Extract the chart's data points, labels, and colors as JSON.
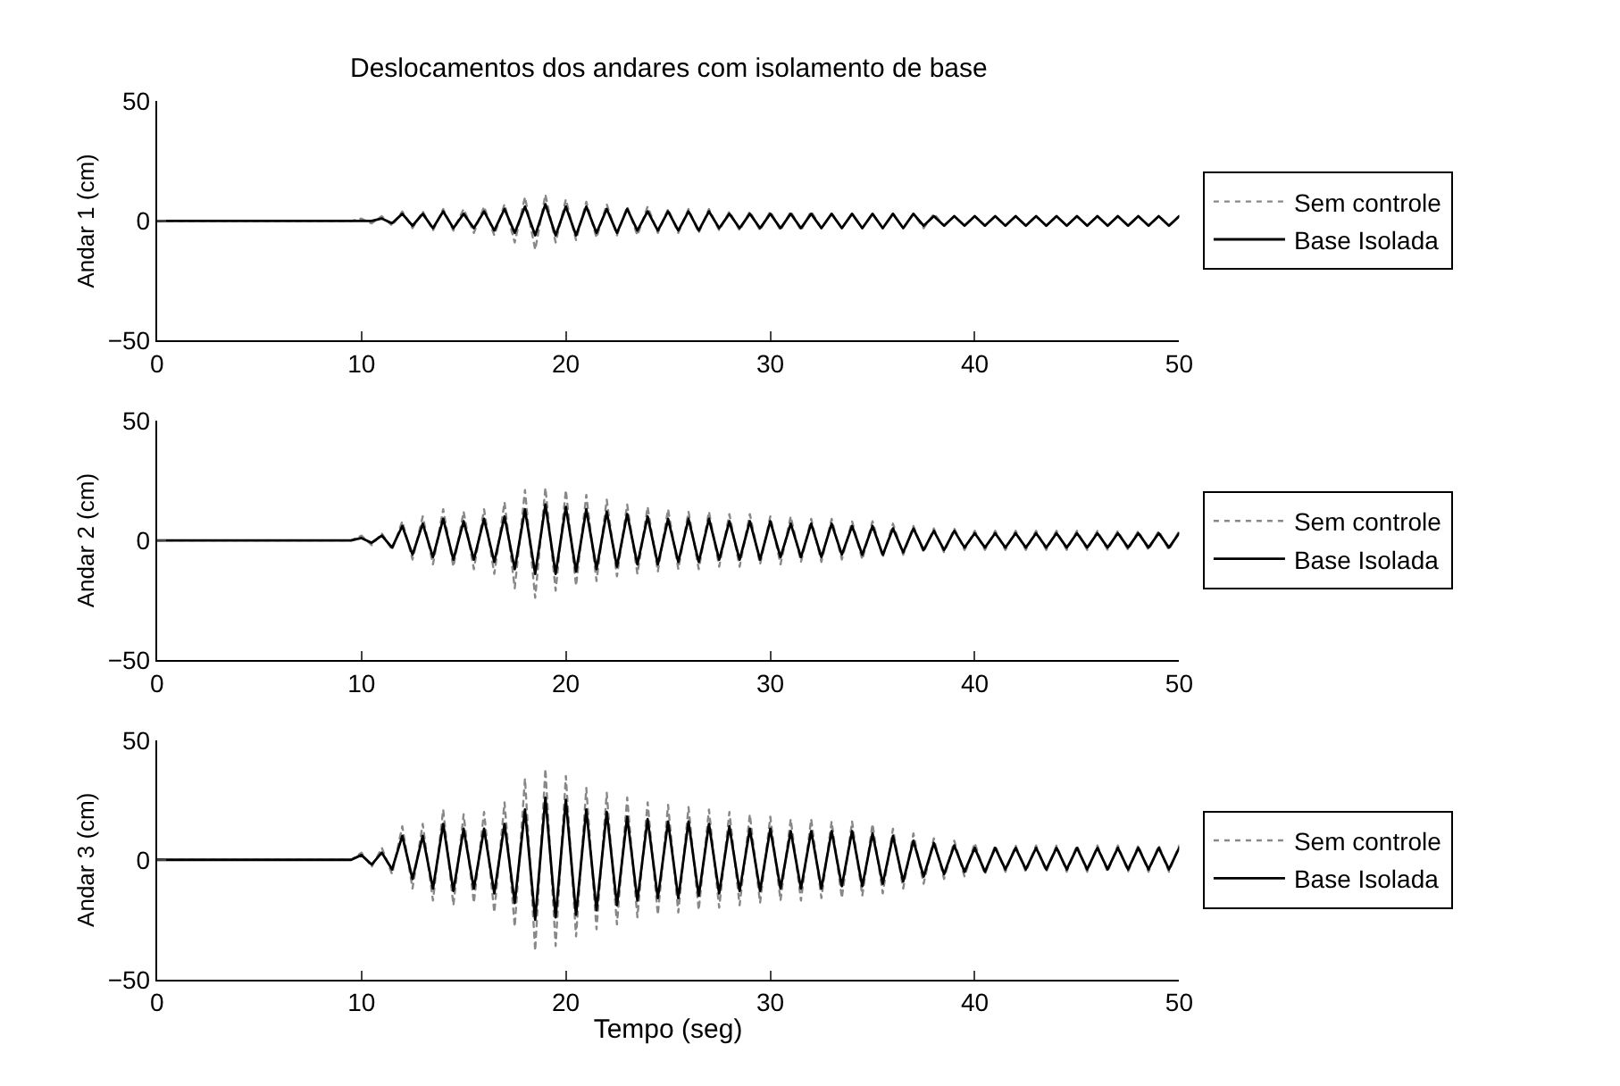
{
  "chart_data": [
    {
      "type": "line",
      "title": "Deslocamentos dos andares com isolamento de base",
      "ylabel": "Andar 1 (cm)",
      "xlim": [
        0,
        50
      ],
      "xticks": [
        0,
        10,
        20,
        30,
        40,
        50
      ],
      "ylim": [
        -50,
        50
      ],
      "yticks": [
        -50,
        0,
        50
      ],
      "legend": "right",
      "x": [
        0,
        9.5,
        10,
        10.5,
        11,
        11.5,
        12,
        12.5,
        13,
        13.5,
        14,
        14.5,
        15,
        15.5,
        16,
        16.5,
        17,
        17.5,
        18,
        18.5,
        19,
        19.5,
        20,
        20.5,
        21,
        21.5,
        22,
        22.5,
        23,
        23.5,
        24,
        24.5,
        25,
        25.5,
        26,
        26.5,
        27,
        27.5,
        28,
        28.5,
        29,
        29.5,
        30,
        30.5,
        31,
        31.5,
        32,
        32.5,
        33,
        33.5,
        34,
        34.5,
        35,
        35.5,
        36,
        36.5,
        37,
        37.5,
        38,
        38.5,
        39,
        39.5,
        40,
        40.5,
        41,
        41.5,
        42,
        42.5,
        43,
        43.5,
        44,
        44.5,
        45,
        45.5,
        46,
        46.5,
        47,
        47.5,
        48,
        48.5,
        49,
        49.5,
        50
      ],
      "series": [
        {
          "name": "Sem controle",
          "color": "#888888",
          "line_style": "dotted",
          "values": [
            0,
            0,
            1,
            -1,
            2,
            -2,
            4,
            -3,
            4,
            -4,
            5,
            -4,
            5,
            -5,
            6,
            -6,
            7,
            -9,
            10,
            -12,
            11,
            -9,
            9,
            -8,
            8,
            -7,
            7,
            -6,
            6,
            -6,
            6,
            -5,
            5,
            -5,
            5,
            -5,
            5,
            -4,
            4,
            -4,
            4,
            -4,
            4,
            -4,
            4,
            -4,
            4,
            -3,
            3,
            -3,
            3,
            -3,
            3,
            -3,
            3,
            -3,
            3,
            -3,
            3,
            -2,
            2,
            -2,
            2,
            -2,
            2,
            -2,
            2,
            -2,
            2,
            -2,
            2,
            -2,
            2,
            -2,
            2,
            -2,
            2,
            -2,
            2,
            -2,
            2,
            -2,
            2
          ]
        },
        {
          "name": "Base Isolada",
          "color": "#000000",
          "line_style": "solid",
          "values": [
            0,
            0,
            0,
            0,
            1,
            -1,
            3,
            -2,
            3,
            -3,
            4,
            -3,
            3,
            -3,
            4,
            -4,
            5,
            -5,
            6,
            -6,
            7,
            -6,
            6,
            -6,
            6,
            -5,
            5,
            -5,
            5,
            -4,
            4,
            -4,
            4,
            -4,
            4,
            -4,
            4,
            -3,
            3,
            -3,
            3,
            -3,
            3,
            -3,
            3,
            -3,
            3,
            -3,
            3,
            -3,
            3,
            -3,
            3,
            -3,
            3,
            -3,
            3,
            -2,
            2,
            -2,
            2,
            -2,
            2,
            -2,
            2,
            -2,
            2,
            -2,
            2,
            -2,
            2,
            -2,
            2,
            -2,
            2,
            -2,
            2,
            -2,
            2,
            -2,
            2,
            -2,
            2
          ]
        }
      ]
    },
    {
      "type": "line",
      "ylabel": "Andar 2 (cm)",
      "xlim": [
        0,
        50
      ],
      "xticks": [
        0,
        10,
        20,
        30,
        40,
        50
      ],
      "ylim": [
        -50,
        50
      ],
      "yticks": [
        -50,
        0,
        50
      ],
      "legend": "right",
      "x": [
        0,
        9.5,
        10,
        10.5,
        11,
        11.5,
        12,
        12.5,
        13,
        13.5,
        14,
        14.5,
        15,
        15.5,
        16,
        16.5,
        17,
        17.5,
        18,
        18.5,
        19,
        19.5,
        20,
        20.5,
        21,
        21.5,
        22,
        22.5,
        23,
        23.5,
        24,
        24.5,
        25,
        25.5,
        26,
        26.5,
        27,
        27.5,
        28,
        28.5,
        29,
        29.5,
        30,
        30.5,
        31,
        31.5,
        32,
        32.5,
        33,
        33.5,
        34,
        34.5,
        35,
        35.5,
        36,
        36.5,
        37,
        37.5,
        38,
        38.5,
        39,
        39.5,
        40,
        40.5,
        41,
        41.5,
        42,
        42.5,
        43,
        43.5,
        44,
        44.5,
        45,
        45.5,
        46,
        46.5,
        47,
        47.5,
        48,
        48.5,
        49,
        49.5,
        50
      ],
      "series": [
        {
          "name": "Sem controle",
          "color": "#888888",
          "line_style": "dotted",
          "values": [
            0,
            0,
            2,
            -2,
            3,
            -4,
            8,
            -8,
            10,
            -10,
            13,
            -11,
            12,
            -12,
            13,
            -14,
            16,
            -20,
            21,
            -24,
            22,
            -21,
            21,
            -19,
            19,
            -17,
            17,
            -15,
            15,
            -14,
            14,
            -13,
            13,
            -12,
            12,
            -12,
            12,
            -11,
            11,
            -11,
            11,
            -10,
            10,
            -10,
            10,
            -9,
            9,
            -9,
            9,
            -8,
            8,
            -8,
            8,
            -7,
            7,
            -6,
            6,
            -5,
            5,
            -5,
            5,
            -4,
            4,
            -4,
            4,
            -4,
            4,
            -4,
            4,
            -4,
            4,
            -4,
            4,
            -4,
            4,
            -4,
            4,
            -4,
            4,
            -4,
            4,
            -4,
            4
          ]
        },
        {
          "name": "Base Isolada",
          "color": "#000000",
          "line_style": "solid",
          "values": [
            0,
            0,
            1,
            -1,
            2,
            -3,
            6,
            -6,
            7,
            -7,
            9,
            -8,
            8,
            -8,
            9,
            -9,
            10,
            -12,
            13,
            -14,
            15,
            -14,
            14,
            -13,
            13,
            -12,
            12,
            -11,
            11,
            -10,
            10,
            -10,
            9,
            -9,
            9,
            -9,
            9,
            -8,
            8,
            -8,
            8,
            -8,
            8,
            -7,
            7,
            -7,
            7,
            -7,
            7,
            -6,
            6,
            -6,
            6,
            -6,
            5,
            -5,
            5,
            -4,
            4,
            -4,
            4,
            -3,
            3,
            -3,
            3,
            -3,
            3,
            -3,
            3,
            -3,
            3,
            -3,
            3,
            -3,
            3,
            -3,
            3,
            -3,
            3,
            -3,
            3,
            -3,
            3
          ]
        }
      ]
    },
    {
      "type": "line",
      "ylabel": "Andar 3 (cm)",
      "xlabel": "Tempo (seg)",
      "xlim": [
        0,
        50
      ],
      "xticks": [
        0,
        10,
        20,
        30,
        40,
        50
      ],
      "ylim": [
        -50,
        50
      ],
      "yticks": [
        -50,
        0,
        50
      ],
      "legend": "right",
      "x": [
        0,
        9.5,
        10,
        10.5,
        11,
        11.5,
        12,
        12.5,
        13,
        13.5,
        14,
        14.5,
        15,
        15.5,
        16,
        16.5,
        17,
        17.5,
        18,
        18.5,
        19,
        19.5,
        20,
        20.5,
        21,
        21.5,
        22,
        22.5,
        23,
        23.5,
        24,
        24.5,
        25,
        25.5,
        26,
        26.5,
        27,
        27.5,
        28,
        28.5,
        29,
        29.5,
        30,
        30.5,
        31,
        31.5,
        32,
        32.5,
        33,
        33.5,
        34,
        34.5,
        35,
        35.5,
        36,
        36.5,
        37,
        37.5,
        38,
        38.5,
        39,
        39.5,
        40,
        40.5,
        41,
        41.5,
        42,
        42.5,
        43,
        43.5,
        44,
        44.5,
        45,
        45.5,
        46,
        46.5,
        47,
        47.5,
        48,
        48.5,
        49,
        49.5,
        50
      ],
      "series": [
        {
          "name": "Sem controle",
          "color": "#888888",
          "line_style": "dotted",
          "values": [
            0,
            0,
            3,
            -3,
            5,
            -6,
            14,
            -12,
            15,
            -17,
            21,
            -19,
            19,
            -18,
            20,
            -22,
            24,
            -28,
            34,
            -38,
            38,
            -36,
            35,
            -32,
            30,
            -29,
            28,
            -27,
            26,
            -24,
            24,
            -23,
            23,
            -22,
            22,
            -21,
            21,
            -20,
            20,
            -19,
            19,
            -18,
            18,
            -17,
            17,
            -17,
            17,
            -16,
            16,
            -16,
            16,
            -15,
            15,
            -14,
            13,
            -12,
            11,
            -10,
            9,
            -8,
            8,
            -7,
            7,
            -6,
            6,
            -5,
            6,
            -5,
            6,
            -5,
            6,
            -5,
            6,
            -5,
            6,
            -5,
            6,
            -5,
            6,
            -5,
            6,
            -5,
            6
          ]
        },
        {
          "name": "Base Isolada",
          "color": "#000000",
          "line_style": "solid",
          "values": [
            0,
            0,
            2,
            -2,
            3,
            -4,
            10,
            -8,
            10,
            -12,
            15,
            -13,
            13,
            -12,
            13,
            -14,
            15,
            -18,
            21,
            -25,
            26,
            -24,
            25,
            -23,
            21,
            -21,
            20,
            -19,
            18,
            -17,
            17,
            -16,
            16,
            -16,
            16,
            -15,
            15,
            -14,
            14,
            -13,
            13,
            -13,
            13,
            -12,
            12,
            -12,
            12,
            -12,
            12,
            -11,
            12,
            -11,
            11,
            -10,
            10,
            -9,
            8,
            -7,
            7,
            -6,
            6,
            -5,
            5,
            -5,
            5,
            -4,
            5,
            -4,
            5,
            -4,
            5,
            -4,
            5,
            -4,
            5,
            -4,
            5,
            -4,
            5,
            -4,
            5,
            -4,
            5
          ]
        }
      ]
    }
  ]
}
